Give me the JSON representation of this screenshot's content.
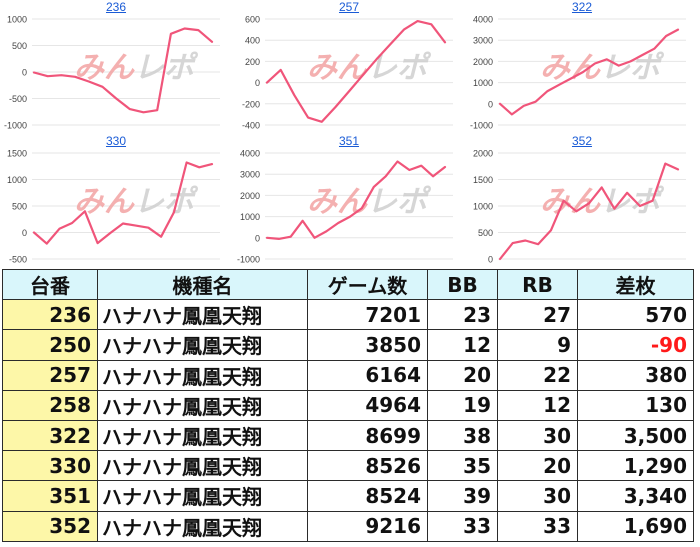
{
  "colors": {
    "line": "#f0557a",
    "grid": "#e6e6e6",
    "title_link": "#1a5bd6",
    "header_bg": "#d9f6fb",
    "number_col_bg": "#fdf7a8",
    "negative": "#ff1a1a",
    "watermark_red": "#f3a3a3",
    "watermark_gray": "#cfcfcf"
  },
  "watermark": {
    "part1": "みん",
    "part2": "レポ"
  },
  "chart_data": [
    {
      "type": "line",
      "title": "236",
      "ylim": [
        -1000,
        1000
      ],
      "yticks": [
        -1000,
        -500,
        0,
        500,
        1000
      ],
      "values": [
        -10,
        -80,
        -60,
        -90,
        -180,
        -280,
        -500,
        -700,
        -760,
        -720,
        720,
        820,
        790,
        570
      ]
    },
    {
      "type": "line",
      "title": "257",
      "ylim": [
        -400,
        600
      ],
      "yticks": [
        -400,
        -200,
        0,
        200,
        400,
        600
      ],
      "values": [
        0,
        120,
        -120,
        -330,
        -370,
        -230,
        -80,
        70,
        220,
        360,
        500,
        580,
        550,
        380
      ]
    },
    {
      "type": "line",
      "title": "322",
      "ylim": [
        -1000,
        4000
      ],
      "yticks": [
        -1000,
        0,
        1000,
        2000,
        3000,
        4000
      ],
      "values": [
        0,
        -500,
        -100,
        100,
        600,
        900,
        1200,
        1500,
        1900,
        2100,
        1800,
        2000,
        2300,
        2600,
        3200,
        3500
      ]
    },
    {
      "type": "line",
      "title": "330",
      "ylim": [
        -500,
        1500
      ],
      "yticks": [
        -500,
        0,
        500,
        1000,
        1500
      ],
      "values": [
        0,
        -210,
        70,
        180,
        400,
        -200,
        -10,
        170,
        130,
        90,
        -80,
        380,
        1320,
        1230,
        1290
      ]
    },
    {
      "type": "line",
      "title": "351",
      "ylim": [
        -1000,
        4000
      ],
      "yticks": [
        -1000,
        0,
        1000,
        2000,
        3000,
        4000
      ],
      "values": [
        0,
        -50,
        50,
        800,
        0,
        300,
        700,
        1000,
        1400,
        2400,
        2900,
        3600,
        3200,
        3400,
        2900,
        3340
      ]
    },
    {
      "type": "line",
      "title": "352",
      "ylim": [
        0,
        2000
      ],
      "yticks": [
        0,
        500,
        1000,
        1500,
        2000
      ],
      "values": [
        0,
        300,
        350,
        280,
        540,
        1100,
        900,
        1050,
        1350,
        950,
        1250,
        1000,
        1100,
        1800,
        1690
      ]
    }
  ],
  "table": {
    "headers": [
      "台番",
      "機種名",
      "ゲーム数",
      "BB",
      "RB",
      "差枚"
    ],
    "rows": [
      {
        "num": "236",
        "name": "ハナハナ鳳凰天翔",
        "games": "7201",
        "bb": "23",
        "rb": "27",
        "diff": "570",
        "negative": false
      },
      {
        "num": "250",
        "name": "ハナハナ鳳凰天翔",
        "games": "3850",
        "bb": "12",
        "rb": "9",
        "diff": "-90",
        "negative": true
      },
      {
        "num": "257",
        "name": "ハナハナ鳳凰天翔",
        "games": "6164",
        "bb": "20",
        "rb": "22",
        "diff": "380",
        "negative": false
      },
      {
        "num": "258",
        "name": "ハナハナ鳳凰天翔",
        "games": "4964",
        "bb": "19",
        "rb": "12",
        "diff": "130",
        "negative": false
      },
      {
        "num": "322",
        "name": "ハナハナ鳳凰天翔",
        "games": "8699",
        "bb": "38",
        "rb": "30",
        "diff": "3,500",
        "negative": false
      },
      {
        "num": "330",
        "name": "ハナハナ鳳凰天翔",
        "games": "8526",
        "bb": "35",
        "rb": "20",
        "diff": "1,290",
        "negative": false
      },
      {
        "num": "351",
        "name": "ハナハナ鳳凰天翔",
        "games": "8524",
        "bb": "39",
        "rb": "30",
        "diff": "3,340",
        "negative": false
      },
      {
        "num": "352",
        "name": "ハナハナ鳳凰天翔",
        "games": "9216",
        "bb": "33",
        "rb": "33",
        "diff": "1,690",
        "negative": false
      }
    ]
  }
}
